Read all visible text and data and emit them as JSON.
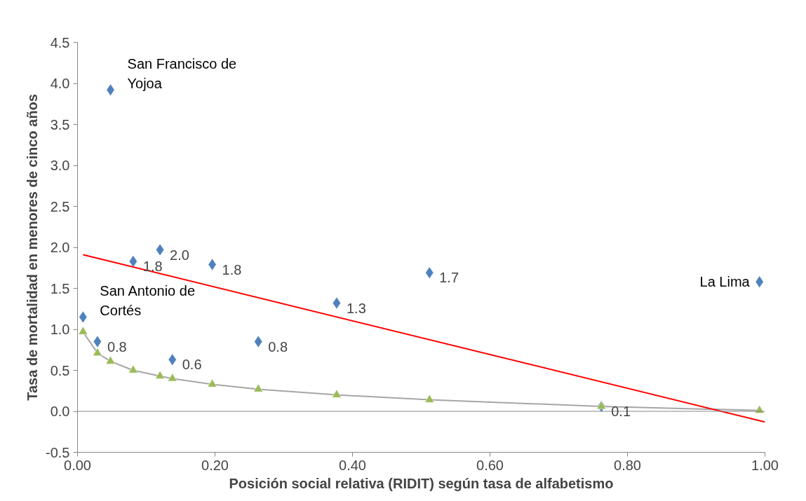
{
  "chart_data": {
    "type": "scatter",
    "xlabel": "Posición social relativa (RIDIT) según tasa de alfabetismo",
    "ylabel": "Tasa de mortalidad en menores de cinco años",
    "x": [
      0.008,
      0.029,
      0.048,
      0.081,
      0.12,
      0.138,
      0.196,
      0.263,
      0.377,
      0.512,
      0.762,
      0.992
    ],
    "series": [
      {
        "marker": "diamond",
        "color": "#4f81bd",
        "values": [
          1.15,
          0.85,
          3.92,
          1.83,
          1.97,
          0.63,
          1.79,
          0.85,
          1.32,
          1.69,
          0.06,
          1.58
        ],
        "value_labels": [
          null,
          "0.8",
          null,
          "1.8",
          "2.0",
          "0.6",
          "1.8",
          "0.8",
          "1.3",
          "1.7",
          "0.1",
          null
        ]
      },
      {
        "type": "line",
        "marker": "none",
        "color": "#a6a6a6",
        "values": [
          0.97,
          0.71,
          0.61,
          0.5,
          0.43,
          0.4,
          0.33,
          0.27,
          0.2,
          0.14,
          0.06,
          0.01
        ]
      },
      {
        "marker": "triangle",
        "color": "#9bbb59",
        "values": [
          0.97,
          0.71,
          0.61,
          0.5,
          0.43,
          0.4,
          0.33,
          0.27,
          0.2,
          0.14,
          0.06,
          0.01
        ]
      },
      {
        "type": "line",
        "marker": "none",
        "color": "#ff0000",
        "x": [
          0.008,
          1.0
        ],
        "values": [
          1.91,
          -0.13
        ]
      }
    ],
    "annotations": [
      {
        "text": "San Francisco de\nYojoa",
        "x": 0.048,
        "y": 3.92
      },
      {
        "text": "San Antonio de\nCortés",
        "x": 0.008,
        "y": 1.15
      },
      {
        "text": "La Lima",
        "x": 0.992,
        "y": 1.58
      }
    ],
    "xlim": [
      0,
      1
    ],
    "xticks": [
      {
        "value": 0,
        "label": "0.00"
      },
      {
        "value": 0.2,
        "label": "0.20"
      },
      {
        "value": 0.4,
        "label": "0.40"
      },
      {
        "value": 0.6,
        "label": "0.60"
      },
      {
        "value": 0.8,
        "label": "0.80"
      },
      {
        "value": 1,
        "label": "1.00"
      }
    ],
    "ylim": [
      -0.5,
      4.5
    ],
    "yticks": [
      {
        "value": -0.5,
        "label": "-0.5"
      },
      {
        "value": 0,
        "label": "0.0"
      },
      {
        "value": 0.5,
        "label": "0.5"
      },
      {
        "value": 1,
        "label": "1.0"
      },
      {
        "value": 1.5,
        "label": "1.5"
      },
      {
        "value": 2,
        "label": "2.0"
      },
      {
        "value": 2.5,
        "label": "2.5"
      },
      {
        "value": 3,
        "label": "3.0"
      },
      {
        "value": 3.5,
        "label": "3.5"
      },
      {
        "value": 4,
        "label": "4.0"
      },
      {
        "value": 4.5,
        "label": "4.5"
      }
    ],
    "ref_lines": [
      {
        "axis": "y",
        "value": 0,
        "color": "#868686"
      }
    ],
    "grid": false
  }
}
